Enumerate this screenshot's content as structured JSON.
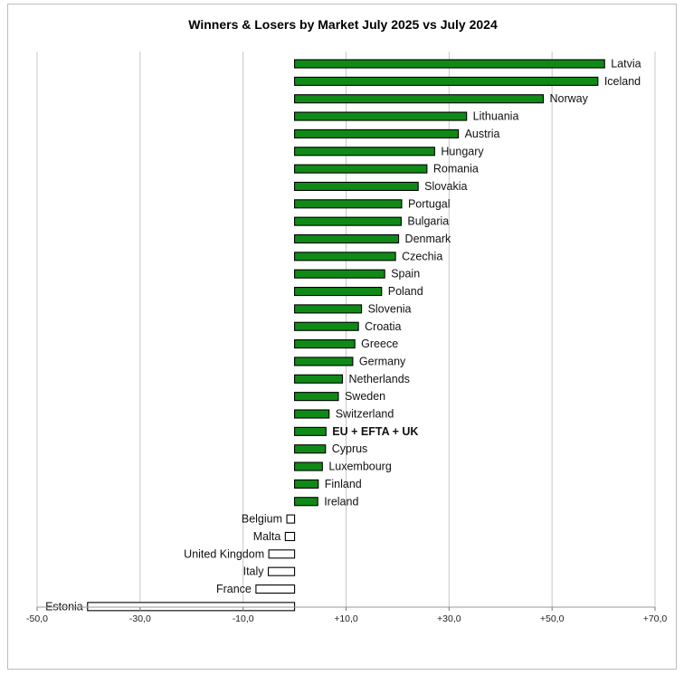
{
  "chart_data": {
    "type": "bar",
    "orientation": "horizontal",
    "title": "Winners & Losers by Market July 2025 vs July 2024",
    "xlim": [
      -50,
      70
    ],
    "xticks": [
      -50,
      -30,
      -10,
      10,
      30,
      50,
      70
    ],
    "xtick_labels": [
      "-50,0",
      "-30,0",
      "-10,0",
      "+10,0",
      "+30,0",
      "+50,0",
      "+70,0"
    ],
    "grid": "vertical",
    "colors": {
      "positive": "#0f8a17",
      "negative": "#ffffff",
      "outline": "#000000"
    },
    "categories": [
      "Latvia",
      "Iceland",
      "Norway",
      "Lithuania",
      "Austria",
      "Hungary",
      "Romania",
      "Slovakia",
      "Portugal",
      "Bulgaria",
      "Denmark",
      "Czechia",
      "Spain",
      "Poland",
      "Slovenia",
      "Croatia",
      "Greece",
      "Germany",
      "Netherlands",
      "Sweden",
      "Switzerland",
      "EU + EFTA + UK",
      "Cyprus",
      "Luxembourg",
      "Finland",
      "Ireland",
      "Belgium",
      "Malta",
      "United Kingdom",
      "Italy",
      "France",
      "Estonia"
    ],
    "values": [
      60.2,
      58.9,
      48.3,
      33.4,
      31.8,
      27.2,
      25.7,
      24.0,
      20.8,
      20.7,
      20.2,
      19.6,
      17.5,
      16.9,
      13.0,
      12.4,
      11.7,
      11.3,
      9.3,
      8.5,
      6.7,
      6.1,
      6.0,
      5.4,
      4.6,
      4.5,
      -1.5,
      -1.8,
      -5.0,
      -5.1,
      -7.5,
      -40.2
    ],
    "highlight": [
      "EU + EFTA + UK"
    ]
  }
}
